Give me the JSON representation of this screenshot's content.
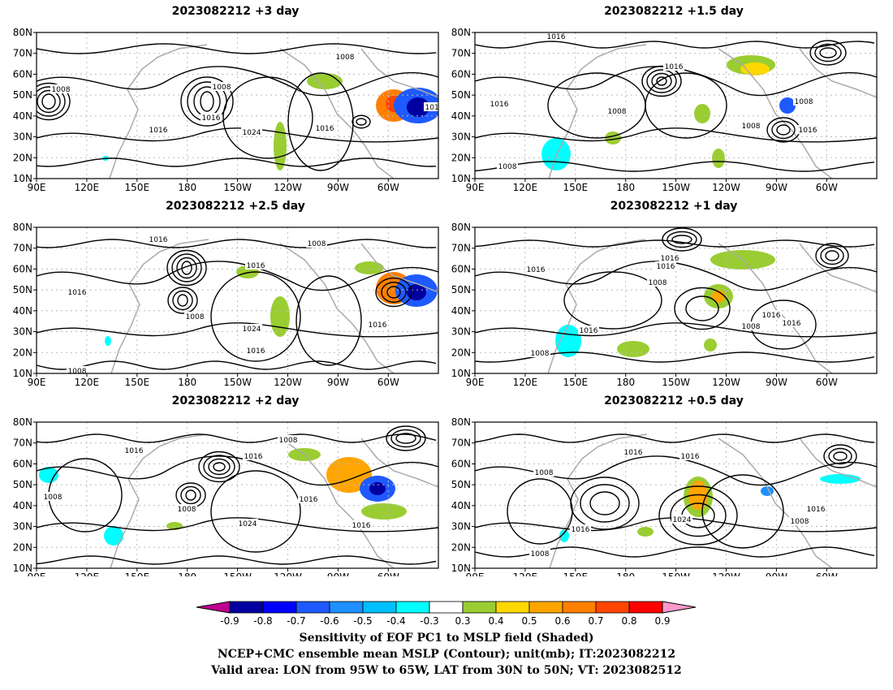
{
  "panels": [
    {
      "title": "2023082212 +3 day"
    },
    {
      "title": "2023082212 +1.5 day"
    },
    {
      "title": "2023082212 +2.5 day"
    },
    {
      "title": "2023082212 +1 day"
    },
    {
      "title": "2023082212 +2 day"
    },
    {
      "title": "2023082212 +0.5 day"
    }
  ],
  "lat_labels": [
    "80N",
    "70N",
    "60N",
    "50N",
    "40N",
    "30N",
    "20N",
    "10N"
  ],
  "lon_labels": [
    "90E",
    "120E",
    "150E",
    "180",
    "150W",
    "120W",
    "90W",
    "60W"
  ],
  "contour_labels": {
    "p0": [
      "1008",
      "1016",
      "1008",
      "1024",
      "1016",
      "1008",
      "1016",
      "1016"
    ],
    "p1": [
      "1016",
      "1008",
      "1016",
      "1016",
      "1008",
      "1008",
      "1016",
      "1008"
    ],
    "p2": [
      "1016",
      "1008",
      "1016",
      "1016",
      "1008",
      "1024",
      "1016",
      "1016",
      "1008"
    ],
    "p3": [
      "1016",
      "1016",
      "1016",
      "1008",
      "1016",
      "1008",
      "1016",
      "1016",
      "1008"
    ],
    "p4": [
      "1016",
      "1008",
      "1016",
      "1008",
      "1008",
      "1024",
      "1016",
      "1016"
    ],
    "p5": [
      "1016",
      "1016",
      "1008",
      "1008",
      "1024",
      "1016",
      "1016",
      "1008"
    ]
  },
  "colorbar": {
    "ticks": [
      "-0.9",
      "-0.8",
      "-0.7",
      "-0.6",
      "-0.5",
      "-0.4",
      "-0.3",
      "0.3",
      "0.4",
      "0.5",
      "0.6",
      "0.7",
      "0.8",
      "0.9"
    ],
    "colors": [
      "#0000a0",
      "#0000ff",
      "#1e5aff",
      "#1e90ff",
      "#00bfff",
      "#00ffff",
      "#ffffff",
      "#9acd32",
      "#ffd700",
      "#ffa500",
      "#ff7f00",
      "#ff4500",
      "#ff0000"
    ],
    "low_end_color": "#c00090",
    "high_end_color": "#ff99cc"
  },
  "caption": {
    "line1": "Sensitivity of EOF PC1 to MSLP field (Shaded)",
    "line2": "NCEP+CMC ensemble mean MSLP (Contour); unit(mb); IT:2023082212",
    "line3": "Valid area: LON from 95W to 65W, LAT from 30N to 50N; VT: 2023082512"
  }
}
